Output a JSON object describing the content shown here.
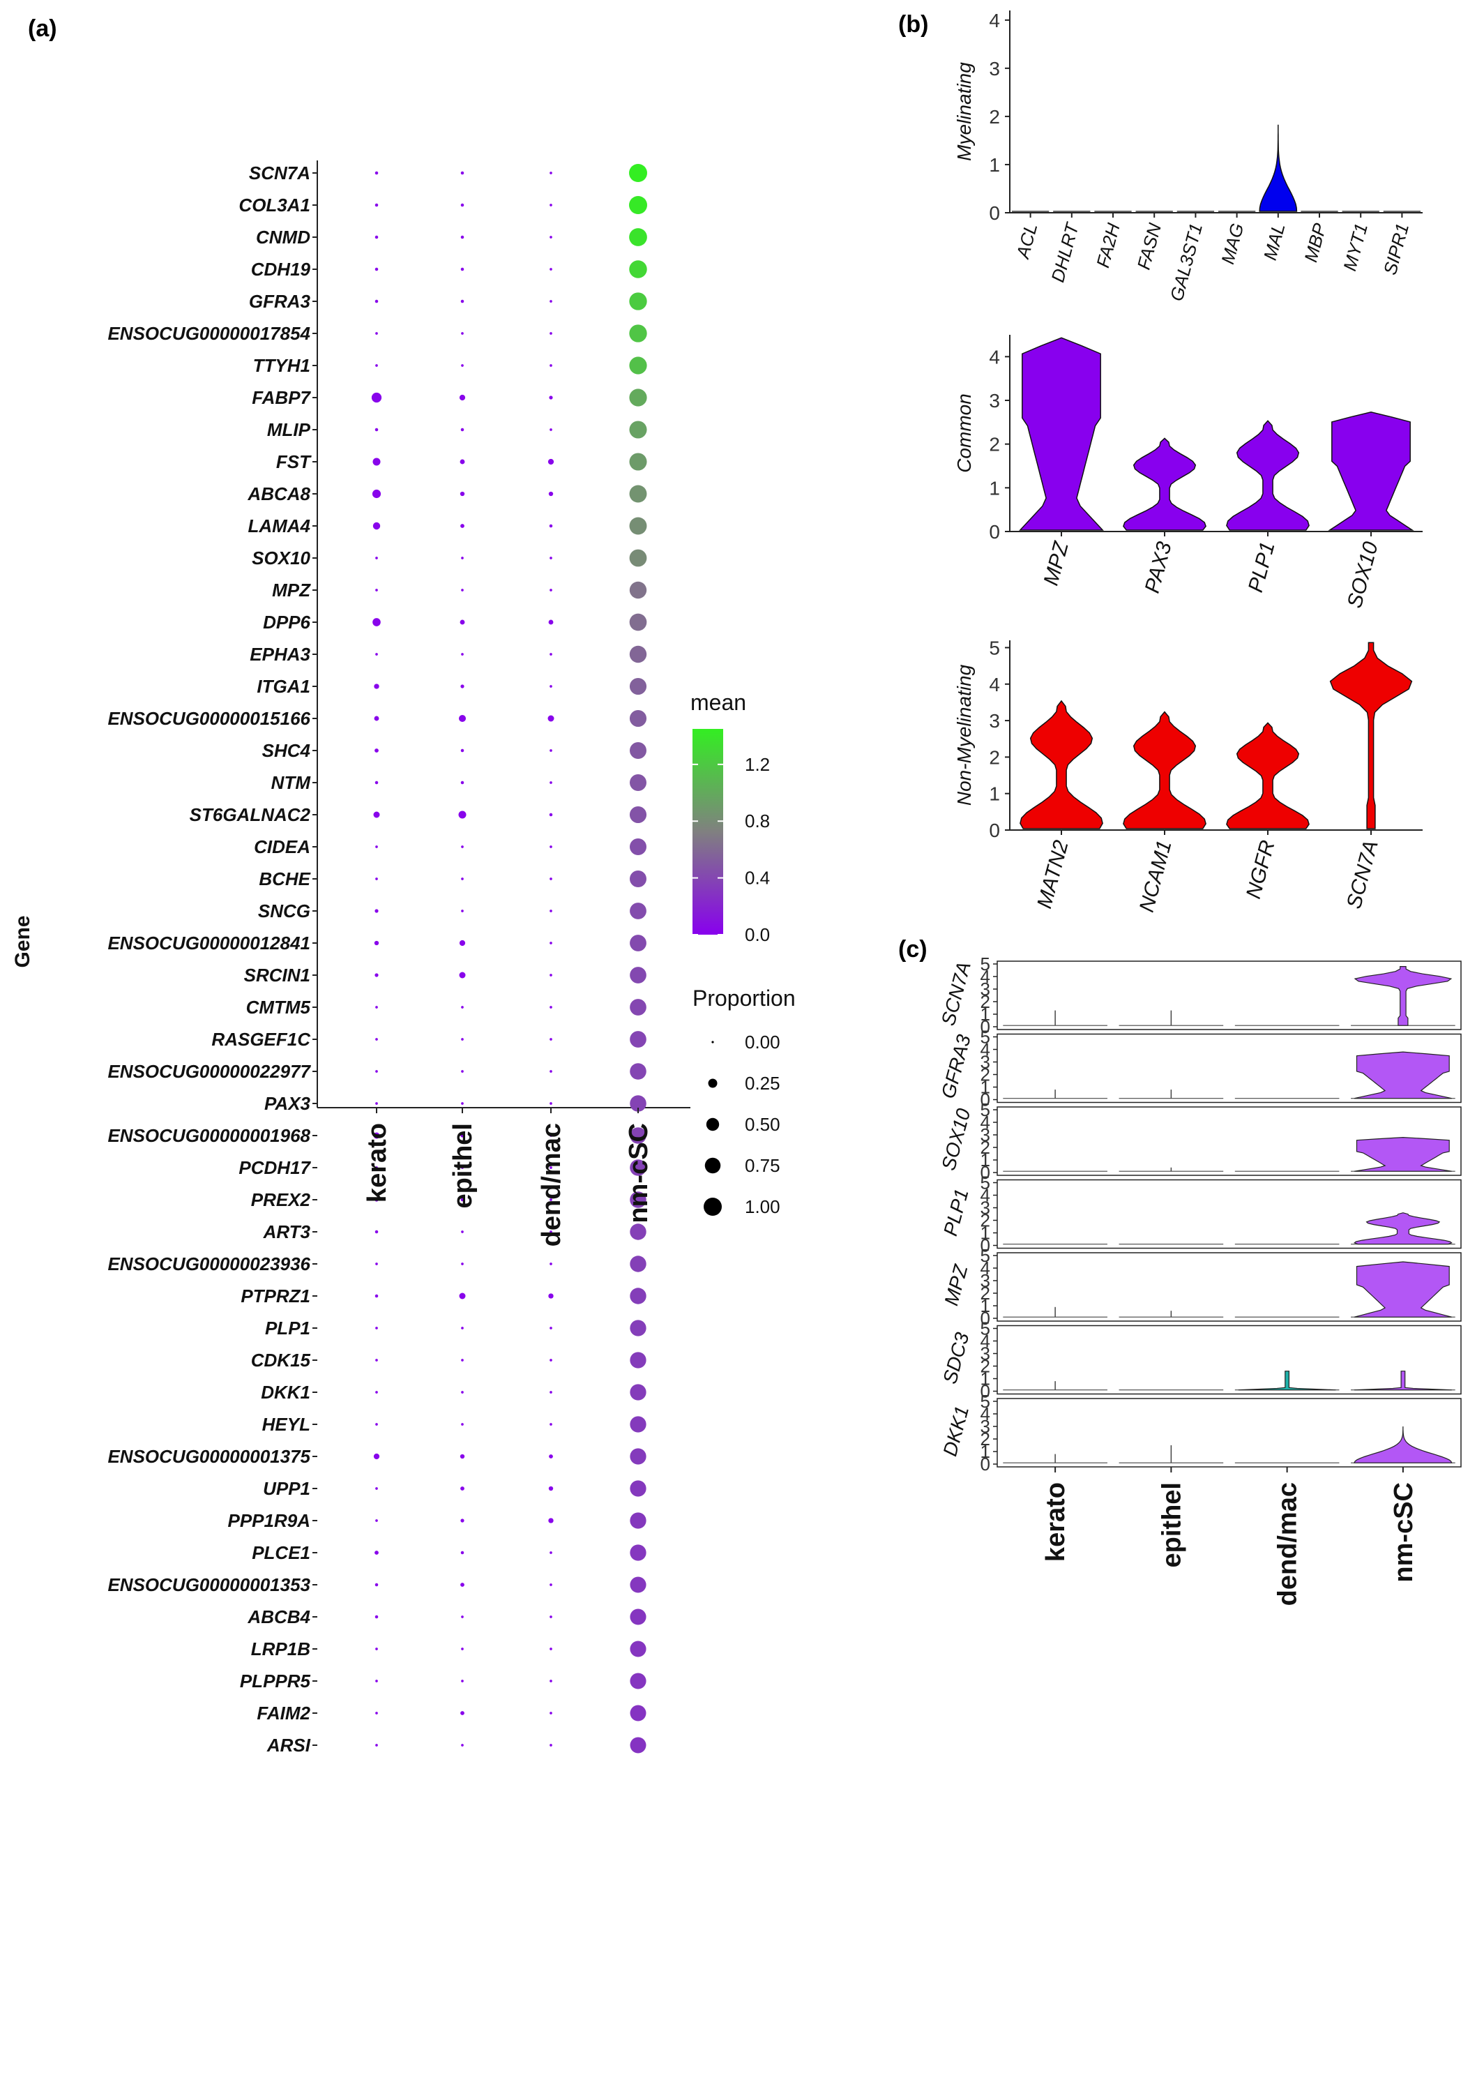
{
  "panels": {
    "a": "(a)",
    "b": "(b)",
    "c": "(c)"
  },
  "chart_data": [
    {
      "panel": "(a)",
      "type": "dot",
      "ylabel": "Gene",
      "categories": [
        "kerato",
        "epithel",
        "dend/mac",
        "nm-cSC"
      ],
      "genes": [
        "SCN7A",
        "COL3A1",
        "CNMD",
        "CDH19",
        "GFRA3",
        "ENSOCUG00000017854",
        "TTYH1",
        "FABP7",
        "MLIP",
        "FST",
        "ABCA8",
        "LAMA4",
        "SOX10",
        "MPZ",
        "DPP6",
        "EPHA3",
        "ITGA1",
        "ENSOCUG00000015166",
        "SHC4",
        "NTM",
        "ST6GALNAC2",
        "CIDEA",
        "BCHE",
        "SNCG",
        "ENSOCUG00000012841",
        "SRCIN1",
        "CMTM5",
        "RASGEF1C",
        "ENSOCUG00000022977",
        "PAX3",
        "ENSOCUG00000001968",
        "PCDH17",
        "PREX2",
        "ART3",
        "ENSOCUG00000023936",
        "PTPRZ1",
        "PLP1",
        "CDK15",
        "DKK1",
        "HEYL",
        "ENSOCUG00000001375",
        "UPP1",
        "PPP1R9A",
        "PLCE1",
        "ENSOCUG00000001353",
        "ABCB4",
        "LRP1B",
        "PLPPR5",
        "FAIM2",
        "ARSI"
      ],
      "proportion": [
        [
          0.03,
          0.03,
          0.02,
          1.0
        ],
        [
          0.03,
          0.03,
          0.02,
          1.0
        ],
        [
          0.03,
          0.03,
          0.02,
          0.98
        ],
        [
          0.03,
          0.03,
          0.02,
          0.96
        ],
        [
          0.03,
          0.03,
          0.02,
          0.95
        ],
        [
          0.02,
          0.02,
          0.02,
          0.95
        ],
        [
          0.02,
          0.02,
          0.02,
          0.94
        ],
        [
          0.3,
          0.1,
          0.04,
          0.94
        ],
        [
          0.03,
          0.03,
          0.02,
          0.93
        ],
        [
          0.18,
          0.07,
          0.1,
          0.93
        ],
        [
          0.22,
          0.06,
          0.06,
          0.92
        ],
        [
          0.16,
          0.05,
          0.03,
          0.92
        ],
        [
          0.02,
          0.02,
          0.02,
          0.91
        ],
        [
          0.02,
          0.02,
          0.02,
          0.88
        ],
        [
          0.2,
          0.07,
          0.07,
          0.9
        ],
        [
          0.02,
          0.02,
          0.02,
          0.88
        ],
        [
          0.08,
          0.04,
          0.02,
          0.86
        ],
        [
          0.07,
          0.15,
          0.12,
          0.86
        ],
        [
          0.05,
          0.03,
          0.02,
          0.85
        ],
        [
          0.03,
          0.03,
          0.02,
          0.85
        ],
        [
          0.12,
          0.18,
          0.03,
          0.86
        ],
        [
          0.02,
          0.02,
          0.02,
          0.85
        ],
        [
          0.02,
          0.02,
          0.02,
          0.85
        ],
        [
          0.04,
          0.02,
          0.02,
          0.84
        ],
        [
          0.06,
          0.1,
          0.02,
          0.84
        ],
        [
          0.04,
          0.12,
          0.02,
          0.83
        ],
        [
          0.02,
          0.02,
          0.02,
          0.83
        ],
        [
          0.02,
          0.02,
          0.02,
          0.83
        ],
        [
          0.02,
          0.02,
          0.02,
          0.82
        ],
        [
          0.02,
          0.02,
          0.02,
          0.82
        ],
        [
          0.12,
          0.04,
          0.02,
          0.82
        ],
        [
          0.02,
          0.02,
          0.02,
          0.82
        ],
        [
          0.04,
          0.03,
          0.02,
          0.82
        ],
        [
          0.03,
          0.02,
          0.02,
          0.81
        ],
        [
          0.02,
          0.02,
          0.02,
          0.81
        ],
        [
          0.03,
          0.12,
          0.08,
          0.81
        ],
        [
          0.02,
          0.02,
          0.02,
          0.8
        ],
        [
          0.02,
          0.02,
          0.02,
          0.8
        ],
        [
          0.02,
          0.02,
          0.02,
          0.8
        ],
        [
          0.02,
          0.02,
          0.02,
          0.8
        ],
        [
          0.1,
          0.06,
          0.05,
          0.8
        ],
        [
          0.02,
          0.05,
          0.06,
          0.8
        ],
        [
          0.02,
          0.04,
          0.08,
          0.8
        ],
        [
          0.05,
          0.03,
          0.02,
          0.8
        ],
        [
          0.03,
          0.05,
          0.02,
          0.79
        ],
        [
          0.03,
          0.02,
          0.02,
          0.79
        ],
        [
          0.02,
          0.02,
          0.02,
          0.79
        ],
        [
          0.02,
          0.02,
          0.02,
          0.79
        ],
        [
          0.02,
          0.05,
          0.02,
          0.78
        ],
        [
          0.02,
          0.02,
          0.02,
          0.78
        ]
      ],
      "mean_ncsc": [
        1.45,
        1.42,
        1.38,
        1.3,
        1.22,
        1.18,
        1.15,
        1.0,
        0.95,
        0.9,
        0.85,
        0.82,
        0.8,
        0.65,
        0.62,
        0.58,
        0.55,
        0.52,
        0.5,
        0.48,
        0.47,
        0.45,
        0.44,
        0.43,
        0.42,
        0.41,
        0.4,
        0.39,
        0.39,
        0.38,
        0.38,
        0.37,
        0.37,
        0.36,
        0.36,
        0.35,
        0.35,
        0.34,
        0.34,
        0.33,
        0.33,
        0.32,
        0.32,
        0.31,
        0.31,
        0.3,
        0.3,
        0.3,
        0.29,
        0.29
      ],
      "mean_others": 0.02,
      "color_scale": {
        "low": "#8800ee",
        "mid": "#808080",
        "high": "#33ee22"
      },
      "legend": {
        "mean_title": "mean",
        "mean_ticks": [
          "1.2",
          "0.8",
          "0.4",
          "0.0"
        ],
        "mean_tick_values": [
          1.2,
          0.8,
          0.4,
          0.0
        ],
        "mean_range": [
          0,
          1.45
        ],
        "proportion_title": "Proportion",
        "proportion_labels": [
          "0.00",
          "0.25",
          "0.50",
          "0.75",
          "1.00"
        ],
        "proportion_values": [
          0.0,
          0.25,
          0.5,
          0.75,
          1.0
        ]
      }
    },
    {
      "panel": "(b)",
      "type": "violin",
      "groups": [
        {
          "ylabel": "Myelinating",
          "yticks": [
            "0",
            "1",
            "2",
            "3",
            "4"
          ],
          "ylim": [
            0,
            4.2
          ],
          "color": "#0000ee",
          "genes": [
            "ACL",
            "DHLRT",
            "FA2H",
            "FASN",
            "GAL3ST1",
            "MAG",
            "MAL",
            "MBP",
            "MYT1",
            "SIPR1"
          ],
          "max": [
            0,
            0,
            0,
            0,
            0,
            0,
            1.8,
            0,
            0,
            0
          ]
        },
        {
          "ylabel": "Common",
          "yticks": [
            "0",
            "1",
            "2",
            "3",
            "4"
          ],
          "ylim": [
            0,
            4.5
          ],
          "color": "#8800ee",
          "genes": [
            "MPZ",
            "PAX3",
            "PLP1",
            "SOX10"
          ],
          "max": [
            4.4,
            2.1,
            2.5,
            2.7
          ]
        },
        {
          "ylabel": "Non-Myelinating",
          "yticks": [
            "0",
            "1",
            "2",
            "3",
            "4",
            "5"
          ],
          "ylim": [
            0,
            5.2
          ],
          "color": "#ee0000",
          "genes": [
            "MATN2",
            "NCAM1",
            "NGFR",
            "SCN7A"
          ],
          "max": [
            3.5,
            3.2,
            2.9,
            5.1
          ]
        }
      ]
    },
    {
      "panel": "(c)",
      "type": "violin",
      "categories": [
        "kerato",
        "epithel",
        "dend/mac",
        "nm-cSC"
      ],
      "yticks": [
        "0",
        "1",
        "2",
        "3",
        "4",
        "5"
      ],
      "ylim": [
        0,
        5
      ],
      "rows": [
        {
          "gene": "SCN7A",
          "max": [
            1.2,
            1.2,
            0,
            4.7
          ]
        },
        {
          "gene": "GFRA3",
          "max": [
            0.7,
            0.7,
            0,
            3.7
          ]
        },
        {
          "gene": "SOX10",
          "max": [
            0,
            0.3,
            0,
            2.7
          ]
        },
        {
          "gene": "PLP1",
          "max": [
            0,
            0,
            0,
            2.5
          ]
        },
        {
          "gene": "MPZ",
          "max": [
            0.8,
            0.5,
            0,
            4.4
          ]
        },
        {
          "gene": "SDC3",
          "max": [
            0.7,
            0,
            1.5,
            1.5
          ]
        },
        {
          "gene": "DKK1",
          "max": [
            0.7,
            1.4,
            0,
            2.9
          ]
        }
      ],
      "colors": {
        "dend/mac": "#20b2aa",
        "nm-cSC": "#b357f5"
      }
    }
  ]
}
